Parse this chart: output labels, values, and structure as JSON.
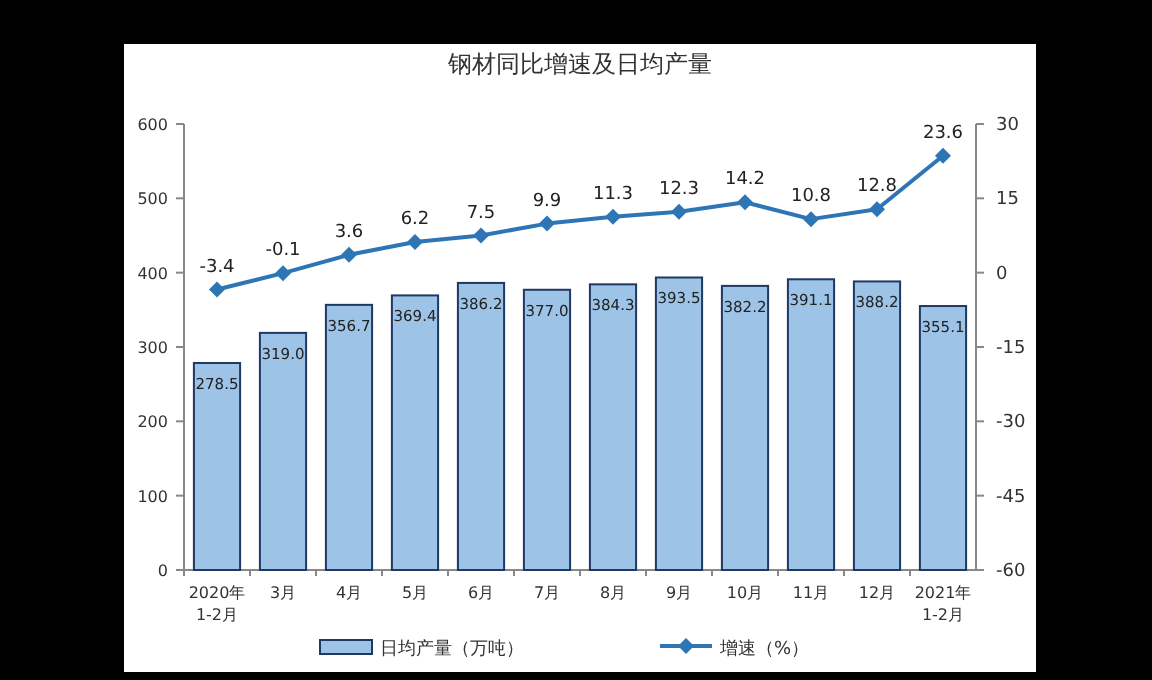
{
  "chart_data": {
    "type": "bar",
    "title": "钢材同比增速及日均产量",
    "categories": [
      "2020年\n1-2月",
      "3月",
      "4月",
      "5月",
      "6月",
      "7月",
      "8月",
      "9月",
      "10月",
      "11月",
      "12月",
      "2021年\n1-2月"
    ],
    "series": [
      {
        "name": "日均产量（万吨）",
        "color": "#9dc3e6",
        "values": [
          278.5,
          319.0,
          356.7,
          369.4,
          386.2,
          377.0,
          384.3,
          393.5,
          382.2,
          391.1,
          388.2,
          355.1
        ],
        "value_labels": [
          "278.5",
          "319.0",
          "356.7",
          "369.4",
          "386.2",
          "377.0",
          "384.3",
          "393.5",
          "382.2",
          "391.1",
          "388.2",
          "355.1"
        ]
      },
      {
        "name": "增速（%）",
        "type": "line",
        "axis": "y2",
        "color": "#2e75b6",
        "marker": "diamond",
        "values": [
          -3.4,
          -0.1,
          3.6,
          6.2,
          7.5,
          9.9,
          11.3,
          12.3,
          14.2,
          10.8,
          12.8,
          23.6
        ]
      }
    ],
    "ylim": [
      0,
      600
    ],
    "yticks": [
      0,
      100,
      200,
      300,
      400,
      500,
      600
    ],
    "y2lim": [
      -60,
      30
    ],
    "y2ticks": [
      -60,
      -45,
      -30,
      -15,
      0,
      15,
      30
    ],
    "data_labels": true,
    "legend": "bottom",
    "grid": false
  }
}
